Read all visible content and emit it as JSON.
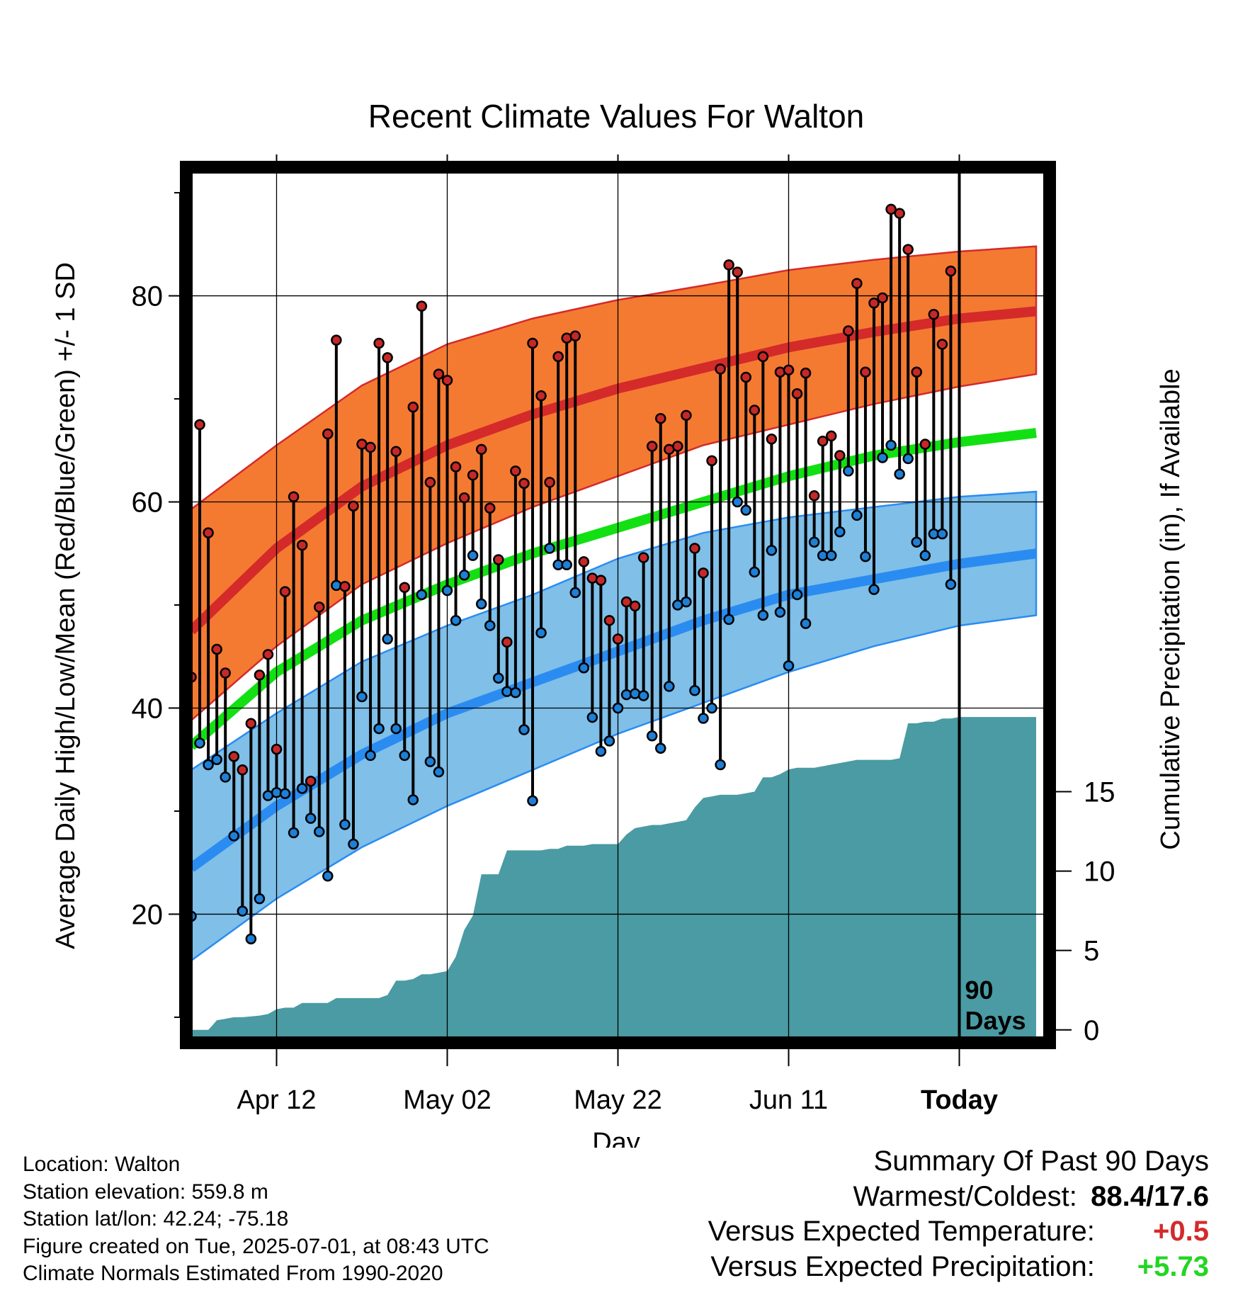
{
  "chart_data": {
    "type": "line",
    "title": "Recent Climate Values For Walton",
    "xlabel": "Day",
    "ylabel": "Average Daily High/Low/Mean (Red/Blue/Green) +/- 1 SD",
    "y2label": "Cumulative Precipitation (in), If Available",
    "x_tick_labels": [
      "Apr 12",
      "May 02",
      "May 22",
      "Jun 11",
      "Today"
    ],
    "x_tick_days": [
      10,
      30,
      50,
      70,
      90
    ],
    "xlim": [
      0,
      100
    ],
    "ylim": [
      8,
      92
    ],
    "y_ticks": [
      20,
      40,
      60,
      80
    ],
    "y2lim": [
      -0.5,
      54
    ],
    "y2_ticks": [
      0,
      5,
      10,
      15
    ],
    "today_label": "90\nDays",
    "grid": true,
    "colors": {
      "high": "#d42a2a",
      "high_band": "#f47a32",
      "low": "#2a8cf0",
      "low_band": "#7fbfe8",
      "mean": "#12e012",
      "precip": "#4a9ba3",
      "marker_high": "#c62828",
      "marker_low": "#1e7fd6"
    },
    "normals": {
      "days": [
        0,
        10,
        20,
        30,
        40,
        50,
        60,
        70,
        80,
        90,
        99
      ],
      "high": [
        47.5,
        55.5,
        61.5,
        65.5,
        68.5,
        71.0,
        73.0,
        75.0,
        76.5,
        77.8,
        78.5
      ],
      "high_upper": [
        59.3,
        65.5,
        71.3,
        75.3,
        77.8,
        79.6,
        81.0,
        82.5,
        83.5,
        84.3,
        84.8
      ],
      "high_lower": [
        38.8,
        46.0,
        52.0,
        56.0,
        59.5,
        62.5,
        65.5,
        67.5,
        69.5,
        71.2,
        72.4
      ],
      "mean": [
        36.3,
        43.5,
        48.5,
        52.0,
        55.0,
        57.5,
        60.0,
        62.5,
        64.5,
        65.8,
        66.7
      ],
      "low": [
        24.5,
        30.5,
        35.5,
        39.5,
        42.5,
        45.5,
        48.5,
        51.0,
        52.5,
        54.0,
        55.0
      ],
      "low_upper": [
        34.0,
        39.5,
        44.5,
        48.0,
        51.0,
        54.5,
        57.0,
        58.5,
        59.5,
        60.5,
        61.0
      ],
      "low_lower": [
        15.5,
        21.5,
        26.5,
        30.5,
        34.0,
        37.5,
        40.5,
        43.5,
        46.0,
        48.0,
        49.0
      ]
    },
    "daily": {
      "day": [
        0,
        1,
        2,
        3,
        4,
        5,
        6,
        7,
        8,
        9,
        10,
        11,
        12,
        13,
        14,
        15,
        16,
        17,
        18,
        19,
        20,
        21,
        22,
        23,
        24,
        25,
        26,
        27,
        28,
        29,
        30,
        31,
        32,
        33,
        34,
        35,
        36,
        37,
        38,
        39,
        40,
        41,
        42,
        43,
        44,
        45,
        46,
        47,
        48,
        49,
        50,
        51,
        52,
        53,
        54,
        55,
        56,
        57,
        58,
        59,
        60,
        61,
        62,
        63,
        64,
        65,
        66,
        67,
        68,
        69,
        70,
        71,
        72,
        73,
        74,
        75,
        76,
        77,
        78,
        79,
        80,
        81,
        82,
        83,
        84,
        85,
        86,
        87,
        88,
        89,
        90
      ],
      "high": [
        43.0,
        67.5,
        57.0,
        45.7,
        43.4,
        35.3,
        34.0,
        38.5,
        43.2,
        45.2,
        36.0,
        51.3,
        60.5,
        55.8,
        32.9,
        49.8,
        66.6,
        75.7,
        51.8,
        59.6,
        65.6,
        65.3,
        75.4,
        74.0,
        64.9,
        51.7,
        69.2,
        79.0,
        61.9,
        72.4,
        71.8,
        63.4,
        60.4,
        62.6,
        65.1,
        59.4,
        54.4,
        46.4,
        63.0,
        61.8,
        75.4,
        70.3,
        61.9,
        74.1,
        75.9,
        76.1,
        54.2,
        52.6,
        52.4,
        48.5,
        46.7,
        50.3,
        49.9,
        54.6,
        65.4,
        68.1,
        65.1,
        65.4,
        68.4,
        55.5,
        53.1,
        64.0,
        72.9,
        83.0,
        82.3,
        72.1,
        68.9,
        74.1,
        66.1,
        72.6,
        72.8,
        70.5,
        72.5,
        60.6,
        65.9,
        66.4,
        64.5,
        76.6,
        81.2,
        72.6,
        79.3,
        79.8,
        88.4,
        88.0,
        84.5,
        72.6,
        65.6,
        78.2,
        75.3,
        82.4,
        null
      ],
      "low": [
        19.8,
        36.6,
        34.5,
        35.0,
        33.3,
        27.6,
        20.3,
        17.6,
        21.5,
        31.5,
        31.8,
        31.7,
        27.9,
        32.2,
        29.3,
        28.0,
        23.7,
        51.9,
        28.7,
        26.8,
        41.1,
        35.4,
        38.0,
        46.7,
        38.0,
        35.4,
        31.1,
        51.0,
        34.8,
        33.8,
        51.4,
        48.5,
        52.9,
        54.8,
        50.1,
        48.0,
        42.9,
        41.6,
        41.5,
        37.9,
        31.0,
        47.3,
        55.5,
        53.9,
        53.9,
        51.2,
        43.9,
        39.1,
        35.8,
        36.8,
        40.0,
        41.3,
        41.4,
        41.2,
        37.3,
        36.1,
        42.1,
        50.0,
        50.3,
        41.7,
        39.0,
        40.0,
        34.5,
        48.6,
        60.0,
        59.2,
        53.2,
        49.0,
        55.3,
        49.3,
        44.1,
        51.0,
        48.2,
        56.1,
        54.8,
        54.8,
        57.1,
        63.0,
        58.7,
        54.7,
        51.5,
        64.3,
        65.5,
        62.7,
        64.2,
        56.1,
        54.8,
        56.9,
        56.9,
        52.0,
        null
      ]
    },
    "precip_cumulative": {
      "days": [
        0,
        2,
        2.5,
        3,
        4,
        5,
        6,
        7,
        8,
        9,
        10,
        11,
        12,
        13,
        14,
        15,
        16,
        17,
        18,
        19,
        20,
        21,
        22,
        23,
        24,
        25,
        26,
        27,
        28,
        29,
        30,
        31,
        32,
        33,
        34,
        35,
        36,
        37,
        38,
        39,
        40,
        41,
        42,
        43,
        44,
        45,
        46,
        47,
        48,
        49,
        50,
        51,
        52,
        53,
        54,
        55,
        56,
        57,
        58,
        59,
        60,
        61,
        62,
        63,
        64,
        65,
        66,
        67,
        68,
        69,
        70,
        71,
        72,
        73,
        74,
        75,
        76,
        77,
        78,
        79,
        80,
        81,
        82,
        83,
        84,
        85,
        86,
        87,
        88,
        89,
        90,
        99
      ],
      "values": [
        0,
        0,
        0.3,
        0.6,
        0.7,
        0.8,
        0.8,
        0.85,
        0.9,
        1.0,
        1.3,
        1.4,
        1.4,
        1.7,
        1.7,
        1.7,
        1.7,
        2.0,
        2.0,
        2.0,
        2.0,
        2.0,
        2.0,
        2.2,
        3.1,
        3.1,
        3.2,
        3.5,
        3.5,
        3.6,
        3.7,
        4.6,
        6.3,
        7.2,
        9.8,
        9.8,
        9.8,
        11.3,
        11.3,
        11.3,
        11.3,
        11.3,
        11.4,
        11.4,
        11.6,
        11.6,
        11.6,
        11.7,
        11.7,
        11.7,
        11.7,
        12.3,
        12.7,
        12.8,
        12.9,
        12.9,
        13.0,
        13.1,
        13.2,
        14.0,
        14.6,
        14.7,
        14.8,
        14.8,
        14.8,
        14.9,
        15.0,
        15.9,
        15.9,
        16.1,
        16.4,
        16.5,
        16.5,
        16.5,
        16.6,
        16.7,
        16.8,
        16.9,
        17.0,
        17.0,
        17.0,
        17.0,
        17.0,
        17.1,
        19.3,
        19.3,
        19.4,
        19.4,
        19.6,
        19.6,
        19.7,
        19.7
      ]
    }
  },
  "metadata": {
    "location": "Location: Walton",
    "elevation": "Station elevation: 559.8 m",
    "latlon": "Station lat/lon: 42.24; -75.18",
    "created": "Figure created on Tue, 2025-07-01, at 08:43 UTC",
    "normals": "Climate Normals Estimated From 1990-2020"
  },
  "summary": {
    "title": "Summary Of Past 90 Days",
    "warm_cold_label": "Warmest/Coldest:",
    "warm_cold_value": "88.4/17.6",
    "temp_label": "Versus Expected Temperature:",
    "temp_value": "+0.5",
    "temp_color": "#d42a2a",
    "precip_label": "Versus Expected Precipitation:",
    "precip_value": "+5.73",
    "precip_color": "#22d622"
  }
}
